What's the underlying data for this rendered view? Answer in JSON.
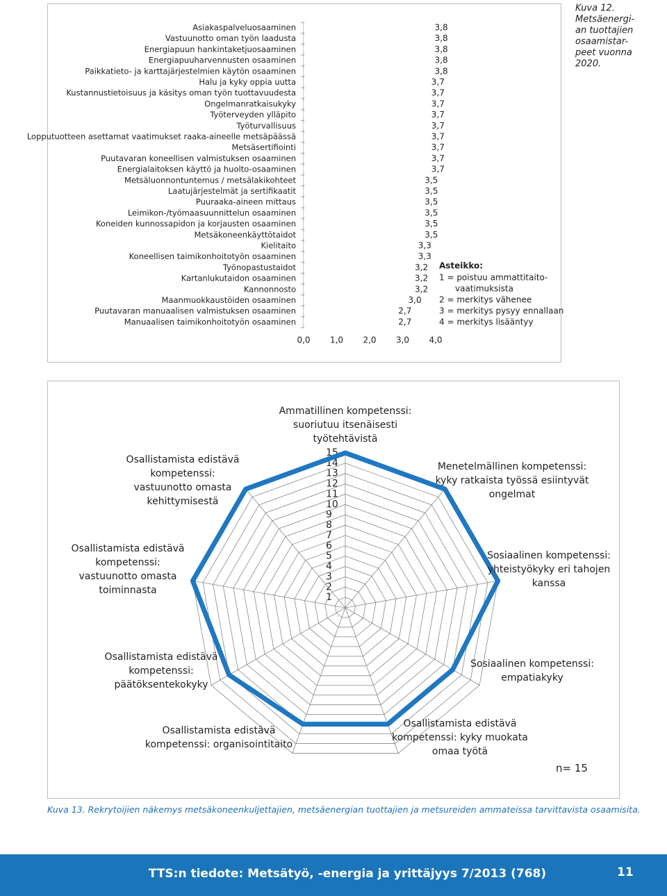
{
  "chart_data": [
    {
      "type": "bar",
      "orientation": "horizontal",
      "categories": [
        "Asiakaspalveluosaaminen",
        "Vastuunotto oman työn laadusta",
        "Energiapuun hankintaketjuosaaminen",
        "Energiapuuharvennusten osaaminen",
        "Paikkatieto- ja karttajärjestelmien käytön osaaminen",
        "Halu ja kyky oppia uutta",
        "Kustannustietoisuus ja käsitys oman työn tuottavuudesta",
        "Ongelmanratkaisukyky",
        "Työterveyden ylläpito",
        "Työturvallisuus",
        "Lopputuotteen asettamat vaatimukset raaka-aineelle metsäpäässä",
        "Metsäsertifiointi",
        "Puutavaran koneellisen valmistuksen osaaminen",
        "Energialaitoksen käyttö ja huolto-osaaminen",
        "Metsäluonnontuntemus / metsälakikohteet",
        "Laatujärjestelmät ja sertifikaatit",
        "Puuraaka-aineen mittaus",
        "Leimikon-/työmaasuunnittelun osaaminen",
        "Koneiden kunnossapidon ja korjausten osaaminen",
        "Metsäkoneenkäyttötaidot",
        "Kielitaito",
        "Koneellisen taimikonhoitotyön osaaminen",
        "Työnopastustaidot",
        "Kartanlukutaidon osaaminen",
        "Kannonnosto",
        "Maanmuokkaustöiden osaaminen",
        "Puutavaran manuaalisen valmistuksen osaaminen",
        "Manuaalisen taimikonhoitotyön osaaminen"
      ],
      "values": [
        3.8,
        3.8,
        3.8,
        3.8,
        3.8,
        3.7,
        3.7,
        3.7,
        3.7,
        3.7,
        3.7,
        3.7,
        3.7,
        3.7,
        3.5,
        3.5,
        3.5,
        3.5,
        3.5,
        3.5,
        3.3,
        3.3,
        3.2,
        3.2,
        3.2,
        3.0,
        2.7,
        2.7
      ],
      "value_labels": [
        "3,8",
        "3,8",
        "3,8",
        "3,8",
        "3,8",
        "3,7",
        "3,7",
        "3,7",
        "3,7",
        "3,7",
        "3,7",
        "3,7",
        "3,7",
        "3,7",
        "3,5",
        "3,5",
        "3,5",
        "3,5",
        "3,5",
        "3,5",
        "3,3",
        "3,3",
        "3,2",
        "3,2",
        "3,2",
        "3,0",
        "2,7",
        "2,7"
      ],
      "color": "#ffffff",
      "xlim": [
        0,
        4
      ],
      "xticks": [
        {
          "value": 0,
          "label": "0,0"
        },
        {
          "value": 1,
          "label": "1,0"
        },
        {
          "value": 2,
          "label": "2,0"
        },
        {
          "value": 3,
          "label": "3,0"
        },
        {
          "value": 4,
          "label": "4,0"
        }
      ],
      "caption_lines": [
        "Kuva 12.",
        "Metsäenergi-",
        "an tuottajien",
        "osaamistar-",
        "peet vuonna",
        "2020."
      ],
      "scale_title": "Asteikko:",
      "scale_lines": [
        "1 = poistuu ammattitaito-",
        "vaatimuksista",
        "2 = merkitys vähenee",
        "3 = merkitys pysyy ennallaan",
        "4 = merkitys lisääntyy"
      ]
    },
    {
      "type": "radar",
      "categories": [
        "Ammatillinen kompetenssi: suoriutuu itsenäisesti työtehtävistä",
        "Menetelmällinen kompetenssi: kyky ratkaista työssä esiintyvät ongelmat",
        "Sosiaalinen kompetenssi: yhteistyökyky eri tahojen kanssa",
        "Sosiaalinen kompetenssi: empatiakyky",
        "Osallistamista edistävä kompetenssi: kyky muokata omaa työtä",
        "Osallistamista edistävä kompetenssi: organisointitaito",
        "Osallistamista edistävä kompetenssi: päätöksentekokyky",
        "Osallistamista edistävä kompetenssi: vastuunotto omasta toiminnasta",
        "Osallistamista edistävä kompetenssi: vastuunotto omasta kehittymisestä"
      ],
      "values": [
        15,
        15,
        15,
        12,
        12,
        12,
        13,
        15,
        15
      ],
      "color": "#1f78c1",
      "rlim": [
        0,
        15
      ],
      "rticks": [
        1,
        2,
        3,
        4,
        5,
        6,
        7,
        8,
        9,
        10,
        11,
        12,
        13,
        14,
        15
      ],
      "annotation": "n= 15"
    }
  ],
  "caption": "Kuva 13. Rekrytoijien näkemys metsäkoneenkuljettajien, metsäenergian tuottajien ja metsureiden ammateissa tarvittavista osaamisita.",
  "footer": {
    "title": "TTS:n tiedote: Metsätyö, -energia ja yrittäjyys 7/2013 (768)",
    "page": "11"
  }
}
